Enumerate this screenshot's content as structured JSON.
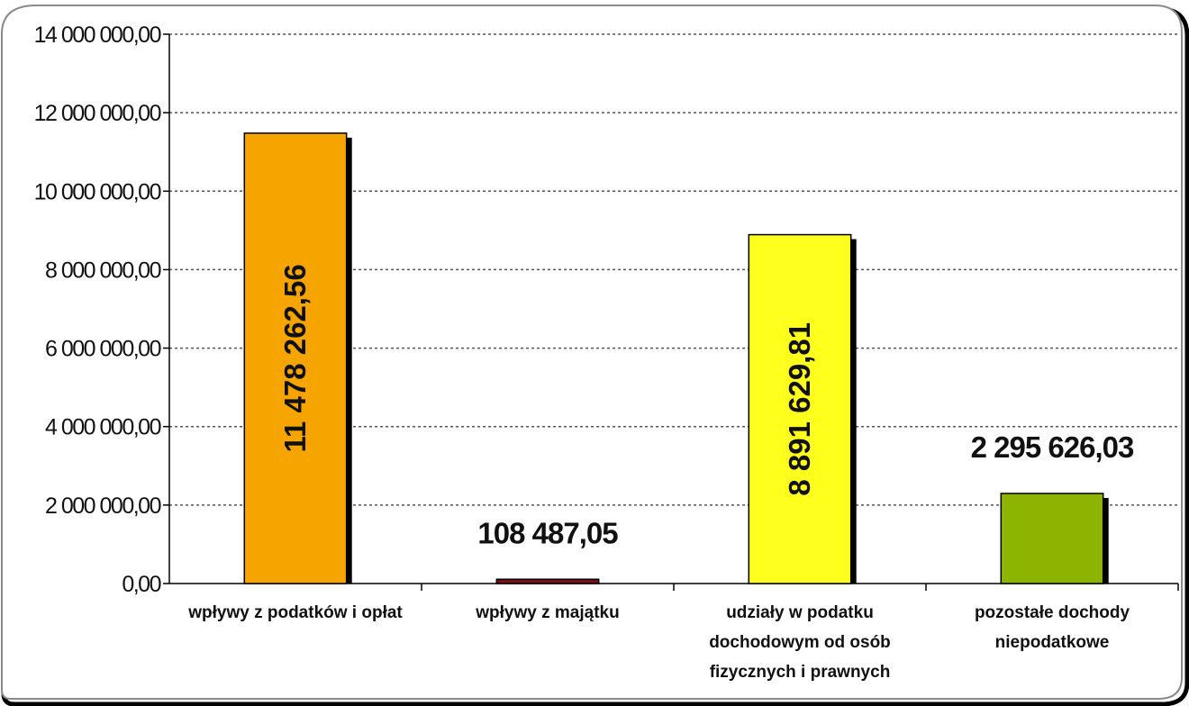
{
  "chart_data": {
    "type": "bar",
    "categories": [
      [
        "wpływy z podatków i opłat"
      ],
      [
        "wpływy z majątku"
      ],
      [
        "udziały w podatku",
        "dochodowym od osób",
        "fizycznych i prawnych"
      ],
      [
        "pozostałe dochody",
        "niepodatkowe"
      ]
    ],
    "values": [
      11478262.56,
      108487.05,
      8891629.81,
      2295626.03
    ],
    "value_labels": [
      "11 478 262,56",
      "108 487,05",
      "8 891 629,81",
      "2 295 626,03"
    ],
    "value_label_placement": [
      "inside-vertical",
      "above",
      "inside-vertical",
      "above"
    ],
    "bar_colors": [
      "#F5A400",
      "#7A0F16",
      "#FFFF1E",
      "#8DB400"
    ],
    "ylim": [
      0,
      14000000
    ],
    "yticks": [
      0,
      2000000,
      4000000,
      6000000,
      8000000,
      10000000,
      12000000,
      14000000
    ],
    "ytick_labels": [
      "0,00",
      "2 000 000,00",
      "4 000 000,00",
      "6 000 000,00",
      "8 000 000,00",
      "10 000 000,00",
      "12 000 000,00",
      "14 000 000,00"
    ],
    "grid": "horizontal-dotted",
    "legend": "none",
    "title": "",
    "xlabel": "",
    "ylabel": ""
  }
}
